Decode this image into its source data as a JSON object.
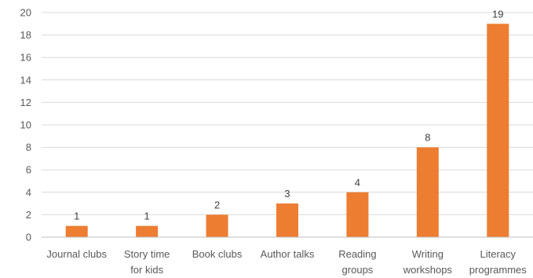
{
  "chart_data": {
    "type": "bar",
    "categories": [
      [
        "Journal clubs"
      ],
      [
        "Story time",
        "for kids"
      ],
      [
        "Book clubs"
      ],
      [
        "Author talks"
      ],
      [
        "Reading",
        "groups"
      ],
      [
        "Writing",
        "workshops"
      ],
      [
        "Literacy",
        "programmes"
      ]
    ],
    "values": [
      1,
      1,
      2,
      3,
      4,
      8,
      19
    ],
    "ylim": [
      0,
      20
    ],
    "yticks": [
      0,
      2,
      4,
      6,
      8,
      10,
      12,
      14,
      16,
      18,
      20
    ],
    "grid": true,
    "legend": "none",
    "bar_color": "#ED7D31",
    "data_labels": true
  }
}
